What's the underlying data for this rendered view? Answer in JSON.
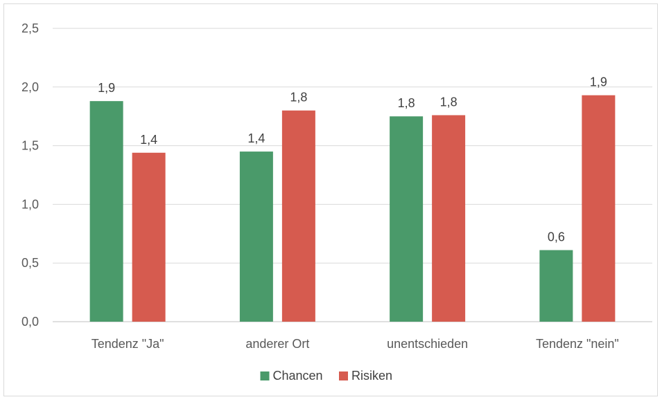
{
  "chart_data": {
    "type": "bar",
    "title": "",
    "xlabel": "",
    "ylabel": "",
    "categories": [
      "Tendenz \"Ja\"",
      "anderer Ort",
      "unentschieden",
      "Tendenz \"nein\""
    ],
    "series": [
      {
        "name": "Chancen",
        "color": "#4a9a6a",
        "values": [
          1.88,
          1.45,
          1.75,
          0.61
        ],
        "labels": [
          "1,9",
          "1,4",
          "1,8",
          "0,6"
        ]
      },
      {
        "name": "Risiken",
        "color": "#d65b4f",
        "values": [
          1.44,
          1.8,
          1.76,
          1.93
        ],
        "labels": [
          "1,4",
          "1,8",
          "1,8",
          "1,9"
        ]
      }
    ],
    "ylim": [
      0,
      2.5
    ],
    "yticks": [
      0,
      0.5,
      1.0,
      1.5,
      2.0,
      2.5
    ],
    "ytick_labels": [
      "0,0",
      "0,5",
      "1,0",
      "1,5",
      "2,0",
      "2,5"
    ],
    "grid": true,
    "legend_position": "bottom"
  }
}
